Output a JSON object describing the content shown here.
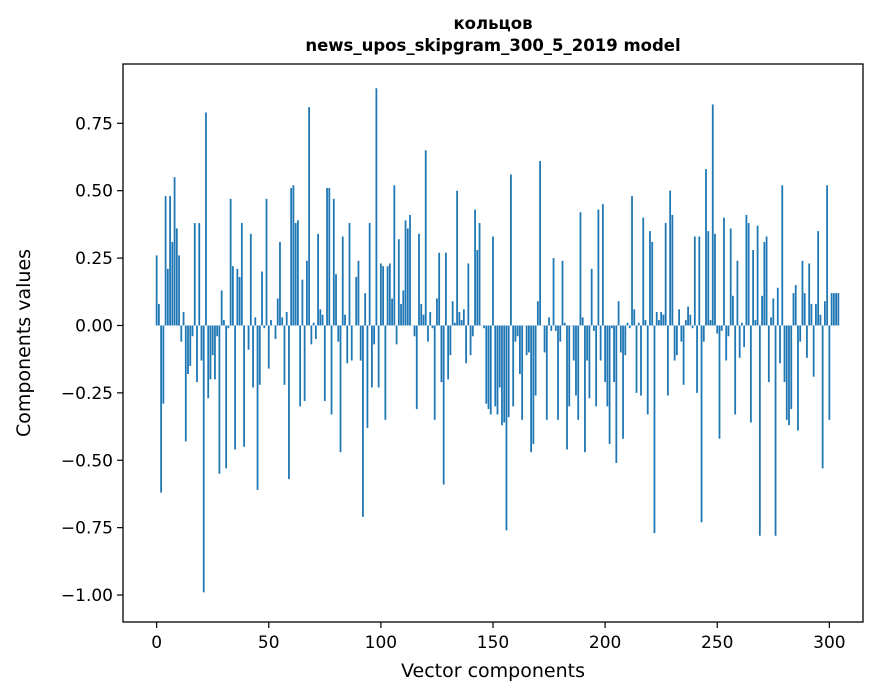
{
  "chart_data": {
    "type": "bar",
    "title": "кольцов",
    "subtitle": "news_upos_skipgram_300_5_2019 model",
    "xlabel": "Vector components",
    "ylabel": "Components values",
    "xlim": [
      -15,
      315
    ],
    "ylim": [
      -1.1,
      0.97
    ],
    "xticks": [
      0,
      50,
      100,
      150,
      200,
      250,
      300
    ],
    "xtick_labels": [
      "0",
      "50",
      "100",
      "150",
      "200",
      "250",
      "300"
    ],
    "yticks": [
      -1.0,
      -0.75,
      -0.5,
      -0.25,
      0.0,
      0.25,
      0.5,
      0.75
    ],
    "ytick_labels": [
      "−1.00",
      "−0.75",
      "−0.50",
      "−0.25",
      "0.00",
      "0.25",
      "0.50",
      "0.75"
    ],
    "bar_color": "#1f77b4",
    "grid": false,
    "values": [
      0.26,
      0.08,
      -0.62,
      -0.29,
      0.48,
      0.21,
      0.48,
      0.31,
      0.55,
      0.36,
      0.26,
      -0.06,
      0.05,
      -0.43,
      -0.18,
      -0.15,
      -0.04,
      0.38,
      -0.21,
      0.38,
      -0.13,
      -0.99,
      0.79,
      -0.27,
      -0.2,
      -0.11,
      -0.2,
      -0.04,
      -0.55,
      0.13,
      0.02,
      -0.53,
      -0.01,
      0.47,
      0.22,
      -0.46,
      0.21,
      0.18,
      0.38,
      -0.45,
      0.0,
      -0.09,
      0.34,
      -0.23,
      0.03,
      -0.61,
      -0.22,
      0.2,
      -0.01,
      0.47,
      -0.16,
      0.02,
      0.0,
      -0.05,
      0.1,
      0.31,
      0.03,
      -0.22,
      0.05,
      -0.57,
      0.51,
      0.52,
      0.38,
      0.39,
      -0.3,
      0.17,
      -0.28,
      0.24,
      0.81,
      -0.07,
      0.01,
      -0.05,
      0.34,
      0.06,
      0.04,
      -0.28,
      0.51,
      0.51,
      -0.33,
      0.47,
      0.19,
      -0.06,
      -0.47,
      0.33,
      0.04,
      -0.14,
      0.38,
      -0.13,
      0.0,
      0.18,
      0.24,
      -0.13,
      -0.71,
      0.12,
      -0.38,
      0.38,
      -0.23,
      -0.07,
      0.88,
      -0.23,
      0.23,
      0.22,
      -0.35,
      0.22,
      0.23,
      0.1,
      0.52,
      -0.07,
      0.32,
      0.08,
      0.13,
      0.39,
      0.36,
      0.41,
      0.0,
      -0.04,
      -0.31,
      0.34,
      0.08,
      0.04,
      0.65,
      -0.06,
      0.05,
      -0.01,
      -0.35,
      0.1,
      0.27,
      -0.21,
      -0.59,
      0.27,
      -0.2,
      -0.11,
      0.09,
      0.01,
      0.5,
      0.05,
      0.02,
      0.06,
      -0.14,
      0.23,
      -0.11,
      -0.04,
      0.43,
      0.28,
      0.38,
      0.0,
      -0.01,
      -0.29,
      -0.31,
      -0.33,
      0.33,
      -0.3,
      -0.33,
      -0.23,
      -0.37,
      -0.36,
      -0.76,
      -0.34,
      0.56,
      -0.3,
      -0.06,
      -0.04,
      -0.18,
      -0.35,
      0.0,
      -0.11,
      -0.1,
      -0.47,
      -0.44,
      -0.26,
      0.09,
      0.61,
      0.0,
      -0.1,
      -0.35,
      0.03,
      -0.02,
      0.25,
      -0.02,
      -0.35,
      -0.06,
      0.24,
      0.01,
      -0.46,
      -0.3,
      0.0,
      -0.13,
      -0.26,
      -0.35,
      0.42,
      0.03,
      -0.47,
      -0.13,
      -0.27,
      0.21,
      -0.02,
      -0.3,
      0.43,
      -0.13,
      0.45,
      -0.21,
      -0.3,
      -0.44,
      -0.01,
      -0.21,
      -0.51,
      0.09,
      -0.1,
      -0.42,
      -0.11,
      0.01,
      -0.01,
      0.48,
      0.06,
      -0.25,
      0.01,
      -0.26,
      0.4,
      0.02,
      -0.33,
      0.35,
      0.31,
      -0.77,
      0.05,
      0.02,
      0.05,
      0.04,
      0.38,
      -0.26,
      0.5,
      0.41,
      -0.13,
      -0.11,
      0.06,
      -0.06,
      -0.22,
      0.02,
      0.07,
      0.04,
      -0.01,
      0.33,
      -0.25,
      0.33,
      -0.73,
      -0.06,
      0.58,
      0.35,
      0.02,
      0.82,
      0.34,
      -0.03,
      -0.42,
      -0.02,
      0.4,
      -0.13,
      -0.04,
      0.36,
      0.11,
      -0.33,
      0.24,
      -0.12,
      0.01,
      -0.08,
      0.41,
      0.38,
      -0.36,
      0.28,
      0.02,
      0.37,
      -0.78,
      0.11,
      0.31,
      0.33,
      -0.21,
      0.03,
      0.1,
      -0.78,
      0.14,
      -0.14,
      0.52,
      -0.21,
      -0.35,
      -0.37,
      -0.31,
      0.12,
      0.15,
      -0.39,
      -0.06,
      0.24,
      0.12,
      -0.12,
      0.23,
      0.08,
      -0.19,
      0.08,
      0.35,
      0.04,
      -0.53,
      0.09,
      0.52,
      -0.35,
      0.12,
      0.12,
      0.12,
      0.12
    ]
  }
}
